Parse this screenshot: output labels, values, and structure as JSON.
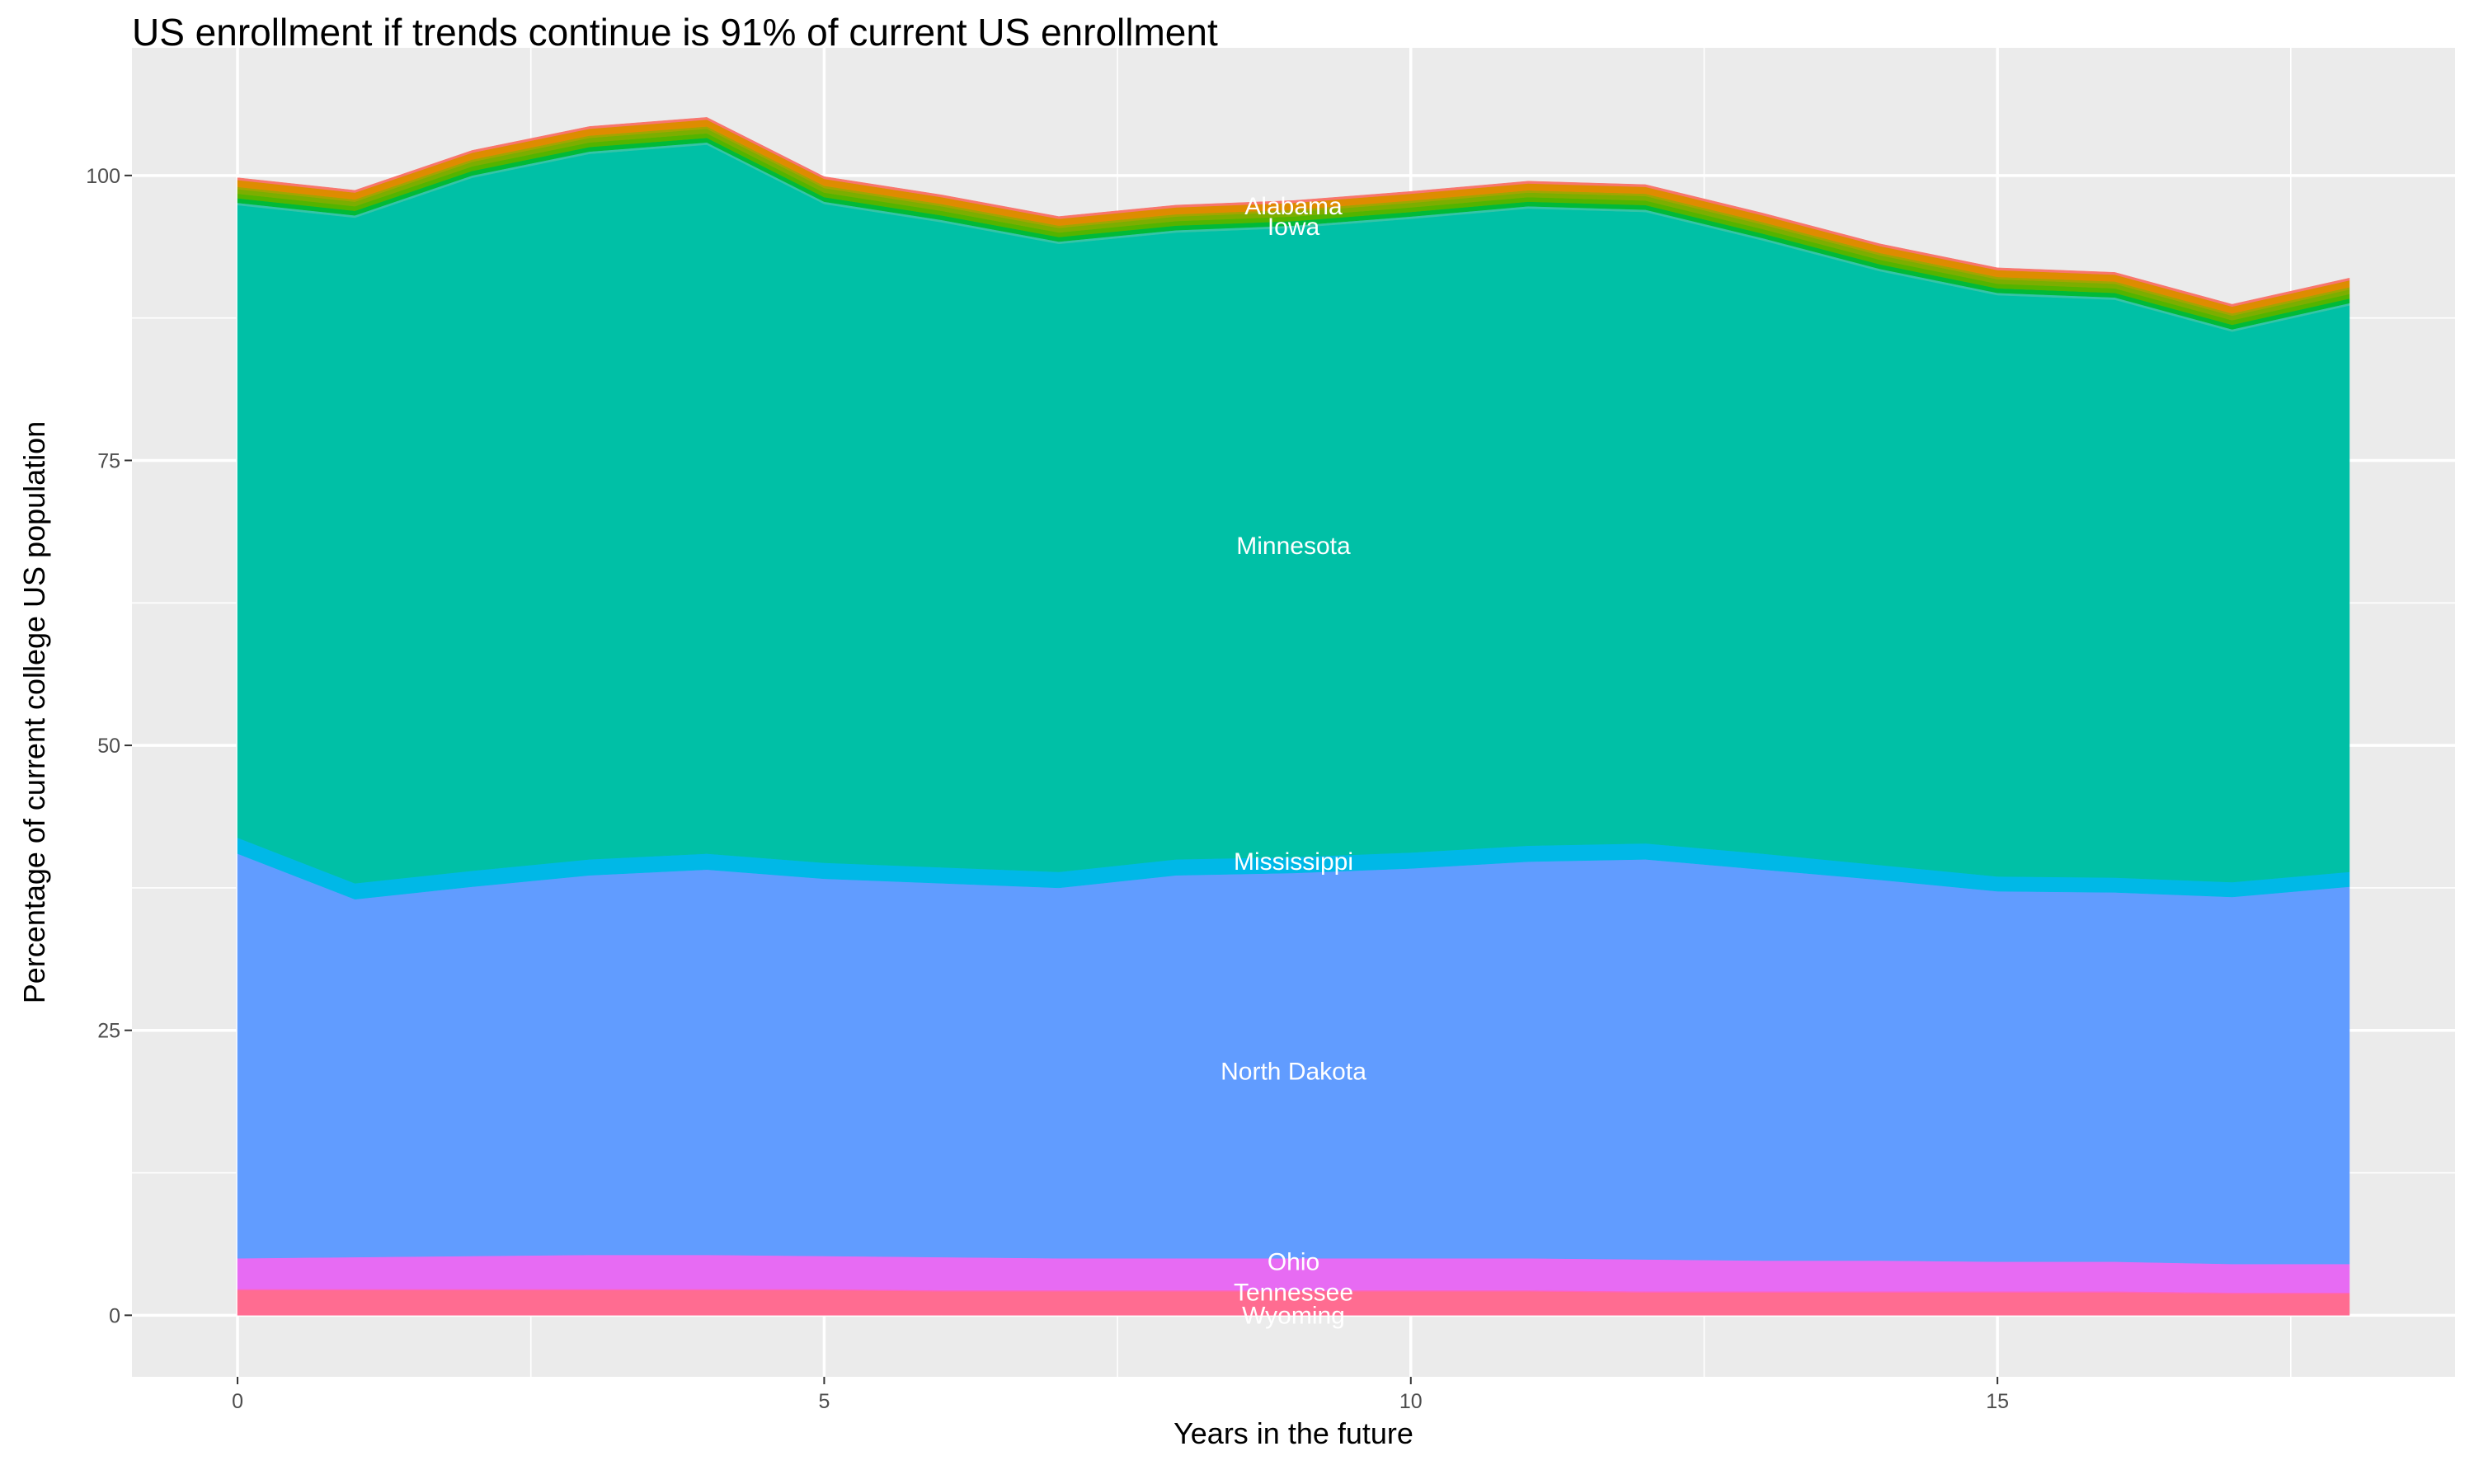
{
  "chart_data": {
    "type": "area",
    "stacked": true,
    "title": "US enrollment if trends continue is 91% of current US enrollment",
    "xlabel": "Years in the future",
    "ylabel": "Percentage of current college US population",
    "xlim": [
      -0.9,
      18.9
    ],
    "ylim": [
      -5.4,
      111.2
    ],
    "xticks": [
      0,
      5,
      10,
      15
    ],
    "yticks": [
      0,
      25,
      50,
      75,
      100
    ],
    "grid": true,
    "background": "#EBEBEB",
    "x": [
      0,
      1,
      2,
      3,
      4,
      5,
      6,
      7,
      8,
      9,
      10,
      11,
      12,
      13,
      14,
      15,
      16,
      17,
      18
    ],
    "series": [
      {
        "name": "Wyoming",
        "color": "#FF6C91",
        "values": [
          2.2,
          2.2,
          2.2,
          2.2,
          2.2,
          2.2,
          2.1,
          2.1,
          2.1,
          2.1,
          2.1,
          2.1,
          2.0,
          2.0,
          2.0,
          2.0,
          2.0,
          1.9,
          1.9
        ]
      },
      {
        "name": "Tennessee",
        "color": "#FF62BC",
        "values": [
          0.1,
          0.1,
          0.1,
          0.1,
          0.1,
          0.1,
          0.1,
          0.1,
          0.1,
          0.1,
          0.1,
          0.1,
          0.1,
          0.1,
          0.1,
          0.1,
          0.1,
          0.1,
          0.1
        ]
      },
      {
        "name": "Ohio",
        "color": "#E76BF3",
        "values": [
          2.7,
          2.8,
          2.9,
          3.0,
          3.0,
          2.9,
          2.9,
          2.8,
          2.8,
          2.8,
          2.8,
          2.8,
          2.8,
          2.7,
          2.7,
          2.6,
          2.6,
          2.5,
          2.5
        ]
      },
      {
        "name": "North Dakota",
        "color": "#619CFF",
        "values": [
          35.5,
          31.4,
          32.4,
          33.3,
          33.8,
          33.1,
          32.8,
          32.5,
          33.6,
          33.8,
          34.2,
          34.8,
          35.1,
          34.3,
          33.4,
          32.5,
          32.4,
          32.2,
          33.1
        ]
      },
      {
        "name": "Mississippi",
        "color": "#00B8E7",
        "values": [
          1.4,
          1.4,
          1.4,
          1.4,
          1.4,
          1.4,
          1.4,
          1.4,
          1.4,
          1.4,
          1.4,
          1.4,
          1.4,
          1.4,
          1.3,
          1.3,
          1.3,
          1.3,
          1.3
        ]
      },
      {
        "name": "Minnesota",
        "color": "#00C0A6",
        "values": [
          55.5,
          58.4,
          60.8,
          61.9,
          62.2,
          57.8,
          56.6,
          55.1,
          55.0,
          55.2,
          55.6,
          55.9,
          55.4,
          53.8,
          52.1,
          51.0,
          50.7,
          48.3,
          49.7
        ]
      },
      {
        "name": "Iowa",
        "color": "#35C4A8",
        "values": [
          0.2,
          0.2,
          0.2,
          0.2,
          0.2,
          0.2,
          0.2,
          0.2,
          0.2,
          0.2,
          0.2,
          0.2,
          0.2,
          0.2,
          0.2,
          0.2,
          0.2,
          0.2,
          0.2
        ]
      },
      {
        "color": "#00BA38",
        "values": [
          0.4,
          0.4,
          0.4,
          0.4,
          0.4,
          0.4,
          0.4,
          0.4,
          0.4,
          0.4,
          0.4,
          0.4,
          0.4,
          0.4,
          0.4,
          0.4,
          0.4,
          0.4,
          0.4
        ]
      },
      {
        "color": "#53B400",
        "values": [
          0.4,
          0.4,
          0.4,
          0.4,
          0.4,
          0.4,
          0.4,
          0.4,
          0.4,
          0.4,
          0.4,
          0.4,
          0.4,
          0.4,
          0.4,
          0.4,
          0.4,
          0.4,
          0.4
        ]
      },
      {
        "color": "#7CAE00",
        "values": [
          0.4,
          0.4,
          0.4,
          0.4,
          0.4,
          0.4,
          0.4,
          0.4,
          0.4,
          0.4,
          0.4,
          0.4,
          0.4,
          0.4,
          0.4,
          0.4,
          0.4,
          0.4,
          0.4
        ]
      },
      {
        "color": "#A3A500",
        "values": [
          0.2,
          0.2,
          0.2,
          0.2,
          0.2,
          0.2,
          0.2,
          0.2,
          0.2,
          0.2,
          0.2,
          0.2,
          0.2,
          0.2,
          0.2,
          0.2,
          0.2,
          0.2,
          0.2
        ]
      },
      {
        "name": "Alabama",
        "color": "#DE8C00",
        "values": [
          0.6,
          0.6,
          0.6,
          0.6,
          0.6,
          0.6,
          0.6,
          0.6,
          0.6,
          0.6,
          0.6,
          0.6,
          0.6,
          0.6,
          0.6,
          0.6,
          0.6,
          0.6,
          0.6
        ]
      },
      {
        "color": "#F8766D",
        "values": [
          0.2,
          0.2,
          0.2,
          0.2,
          0.2,
          0.2,
          0.2,
          0.2,
          0.2,
          0.2,
          0.2,
          0.2,
          0.2,
          0.2,
          0.2,
          0.2,
          0.2,
          0.2,
          0.2
        ]
      }
    ],
    "annotations": [
      {
        "text": "Alabama",
        "x": 9,
        "y": 97.3
      },
      {
        "text": "Iowa",
        "x": 9,
        "y": 95.5
      },
      {
        "text": "Minnesota",
        "x": 9,
        "y": 67.5
      },
      {
        "text": "Mississippi",
        "x": 9,
        "y": 39.8
      },
      {
        "text": "North Dakota",
        "x": 9,
        "y": 21.4
      },
      {
        "text": "Ohio",
        "x": 9,
        "y": 4.7
      },
      {
        "text": "Tennessee",
        "x": 9,
        "y": 2.0
      },
      {
        "text": "Wyoming",
        "x": 9,
        "y": 0
      }
    ]
  }
}
